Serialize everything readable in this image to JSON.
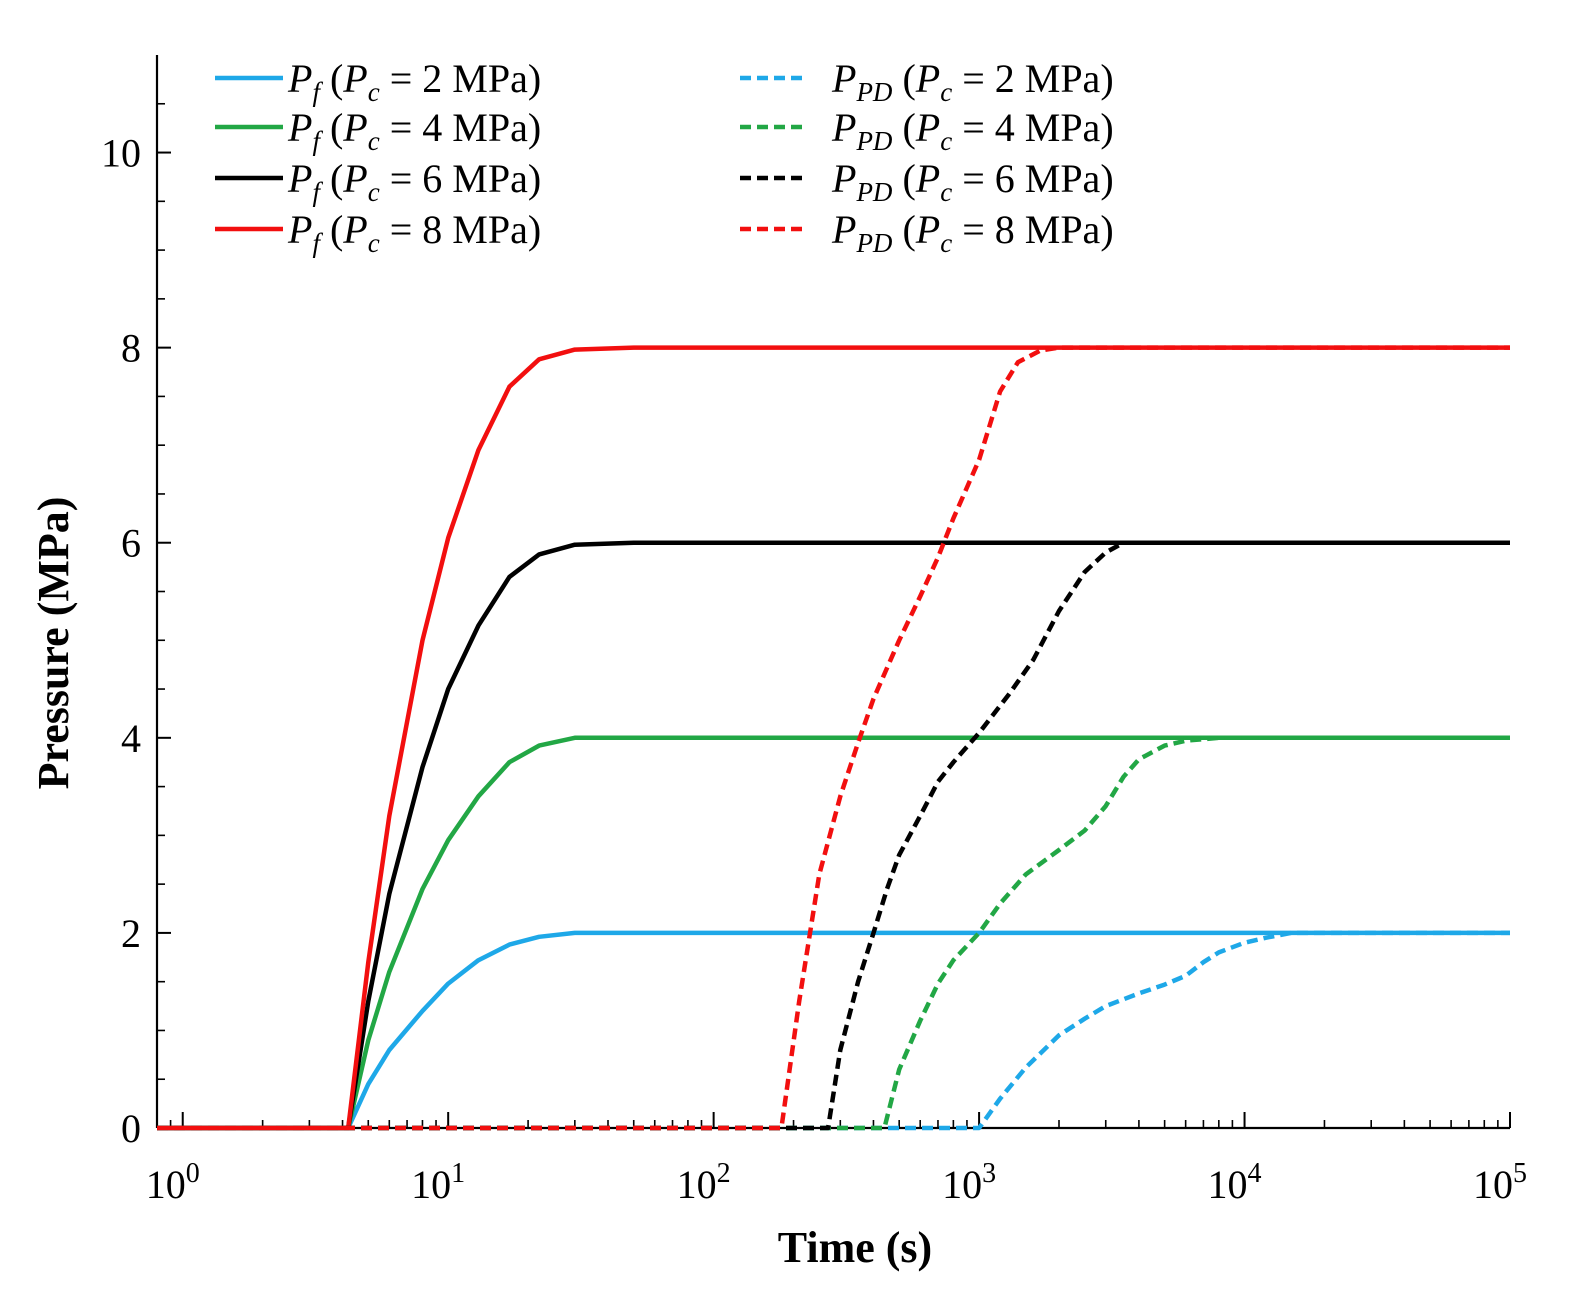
{
  "chart_data": {
    "type": "line",
    "title": "",
    "xlabel": "Time (s)",
    "ylabel": "Pressure (MPa)",
    "xscale": "log",
    "xlim": [
      0.8,
      100000
    ],
    "ylim": [
      0,
      11
    ],
    "grid": false,
    "legend_position": "top-left",
    "x_ticks": [
      {
        "value": 1,
        "base": "10",
        "exp": "0"
      },
      {
        "value": 10,
        "base": "10",
        "exp": "1"
      },
      {
        "value": 100,
        "base": "10",
        "exp": "2"
      },
      {
        "value": 1000,
        "base": "10",
        "exp": "3"
      },
      {
        "value": 10000,
        "base": "10",
        "exp": "4"
      },
      {
        "value": 100000,
        "base": "10",
        "exp": "5"
      }
    ],
    "y_ticks": [
      {
        "value": 0,
        "label": "0"
      },
      {
        "value": 2,
        "label": "2"
      },
      {
        "value": 4,
        "label": "4"
      },
      {
        "value": 6,
        "label": "6"
      },
      {
        "value": 8,
        "label": "8"
      },
      {
        "value": 10,
        "label": "10"
      }
    ],
    "legend_columns": [
      [
        {
          "sym": "P",
          "sub": "f",
          "open": " (",
          "pc": "P",
          "pcsub": "c",
          "rest": " = 2 MPa)",
          "color": "#1EA8E8",
          "dash": "solid"
        },
        {
          "sym": "P",
          "sub": "f",
          "open": " (",
          "pc": "P",
          "pcsub": "c",
          "rest": " = 4 MPa)",
          "color": "#22A745",
          "dash": "solid"
        },
        {
          "sym": "P",
          "sub": "f",
          "open": " (",
          "pc": "P",
          "pcsub": "c",
          "rest": " = 6 MPa)",
          "color": "#000000",
          "dash": "solid"
        },
        {
          "sym": "P",
          "sub": "f",
          "open": " (",
          "pc": "P",
          "pcsub": "c",
          "rest": " = 8 MPa)",
          "color": "#F20F0F",
          "dash": "solid"
        }
      ],
      [
        {
          "sym": "P",
          "sub": "PD",
          "open": " (",
          "pc": "P",
          "pcsub": "c",
          "rest": " = 2 MPa)",
          "color": "#1EA8E8",
          "dash": "dashed"
        },
        {
          "sym": "P",
          "sub": "PD",
          "open": " (",
          "pc": "P",
          "pcsub": "c",
          "rest": " = 4 MPa)",
          "color": "#22A745",
          "dash": "dashed"
        },
        {
          "sym": "P",
          "sub": "PD",
          "open": " (",
          "pc": "P",
          "pcsub": "c",
          "rest": " = 6 MPa)",
          "color": "#000000",
          "dash": "dashed"
        },
        {
          "sym": "P",
          "sub": "PD",
          "open": " (",
          "pc": "P",
          "pcsub": "c",
          "rest": " = 8 MPa)",
          "color": "#F20F0F",
          "dash": "dashed"
        }
      ]
    ],
    "series": [
      {
        "name": "Pf (Pc = 2 MPa)",
        "color": "#1EA8E8",
        "dash": "solid",
        "x": [
          0.8,
          4.2,
          5,
          6,
          8,
          10,
          13,
          17,
          22,
          30,
          50,
          100000
        ],
        "y": [
          0,
          0,
          0.45,
          0.8,
          1.2,
          1.48,
          1.72,
          1.88,
          1.96,
          2.0,
          2.0,
          2.0
        ]
      },
      {
        "name": "Pf (Pc = 4 MPa)",
        "color": "#22A745",
        "dash": "solid",
        "x": [
          0.8,
          4.2,
          5,
          6,
          8,
          10,
          13,
          17,
          22,
          30,
          50,
          100000
        ],
        "y": [
          0,
          0,
          0.9,
          1.6,
          2.45,
          2.95,
          3.4,
          3.75,
          3.92,
          4.0,
          4.0,
          4.0
        ]
      },
      {
        "name": "Pf (Pc = 6 MPa)",
        "color": "#000000",
        "dash": "solid",
        "x": [
          0.8,
          4.2,
          5,
          6,
          8,
          10,
          13,
          17,
          22,
          30,
          50,
          100000
        ],
        "y": [
          0,
          0,
          1.3,
          2.4,
          3.7,
          4.5,
          5.15,
          5.65,
          5.88,
          5.98,
          6.0,
          6.0
        ]
      },
      {
        "name": "Pf (Pc = 8 MPa)",
        "color": "#F20F0F",
        "dash": "solid",
        "x": [
          0.8,
          4.2,
          5,
          6,
          8,
          10,
          13,
          17,
          22,
          30,
          50,
          100000
        ],
        "y": [
          0,
          0,
          1.7,
          3.2,
          5.0,
          6.05,
          6.95,
          7.6,
          7.88,
          7.98,
          8.0,
          8.0
        ]
      },
      {
        "name": "PPD (Pc = 2 MPa)",
        "color": "#1EA8E8",
        "dash": "dashed",
        "x": [
          0.8,
          1000,
          1200,
          1500,
          2000,
          2500,
          3000,
          4000,
          5000,
          6000,
          7000,
          8000,
          10000,
          12000,
          15000,
          100000
        ],
        "y": [
          0,
          0,
          0.3,
          0.62,
          0.95,
          1.12,
          1.25,
          1.38,
          1.47,
          1.56,
          1.7,
          1.8,
          1.9,
          1.95,
          2.0,
          2.0
        ]
      },
      {
        "name": "PPD (Pc = 4 MPa)",
        "color": "#22A745",
        "dash": "dashed",
        "x": [
          0.8,
          440,
          500,
          600,
          700,
          800,
          1000,
          1200,
          1500,
          2000,
          2500,
          3000,
          3500,
          4000,
          5000,
          6000,
          8000,
          100000
        ],
        "y": [
          0,
          0,
          0.6,
          1.1,
          1.48,
          1.72,
          2.0,
          2.3,
          2.6,
          2.85,
          3.05,
          3.3,
          3.6,
          3.78,
          3.92,
          3.97,
          4.0,
          4.0
        ]
      },
      {
        "name": "PPD (Pc = 6 MPa)",
        "color": "#000000",
        "dash": "dashed",
        "x": [
          0.8,
          270,
          300,
          350,
          400,
          450,
          500,
          600,
          700,
          800,
          1000,
          1300,
          1600,
          2000,
          2500,
          3000,
          3500,
          100000
        ],
        "y": [
          0,
          0,
          0.8,
          1.5,
          2.0,
          2.45,
          2.8,
          3.2,
          3.55,
          3.75,
          4.05,
          4.45,
          4.8,
          5.3,
          5.7,
          5.9,
          6.0,
          6.0
        ]
      },
      {
        "name": "PPD (Pc = 8 MPa)",
        "color": "#F20F0F",
        "dash": "dashed",
        "x": [
          0.8,
          180,
          210,
          250,
          300,
          350,
          400,
          500,
          600,
          700,
          800,
          1000,
          1200,
          1400,
          1700,
          2000,
          100000
        ],
        "y": [
          0,
          0,
          1.3,
          2.6,
          3.4,
          3.95,
          4.4,
          5.0,
          5.45,
          5.85,
          6.25,
          6.85,
          7.55,
          7.85,
          7.97,
          8.0,
          8.0
        ]
      }
    ]
  }
}
